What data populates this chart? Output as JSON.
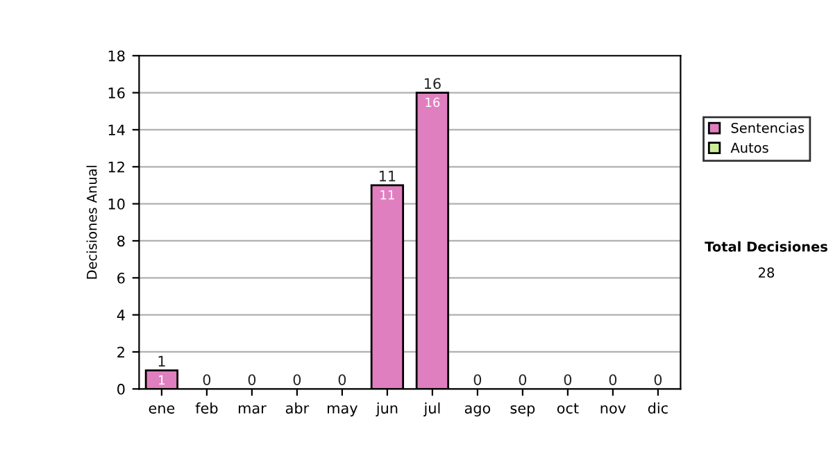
{
  "chart_data": {
    "type": "bar",
    "stacked": true,
    "ylabel": "Decisiones Anual",
    "categories": [
      "ene",
      "feb",
      "mar",
      "abr",
      "may",
      "jun",
      "jul",
      "ago",
      "sep",
      "oct",
      "nov",
      "dic"
    ],
    "series": [
      {
        "name": "Sentencias",
        "color": "#e07fbf",
        "values": [
          1,
          0,
          0,
          0,
          0,
          11,
          16,
          0,
          0,
          0,
          0,
          0
        ],
        "value_labels": [
          "1",
          null,
          null,
          null,
          null,
          "11",
          "16",
          null,
          null,
          null,
          null,
          null
        ]
      },
      {
        "name": "Autos",
        "color": "#ccee99",
        "values": [
          0,
          0,
          0,
          0,
          0,
          0,
          0,
          0,
          0,
          0,
          0,
          0
        ]
      }
    ],
    "totals": [
      "1",
      "0",
      "0",
      "0",
      "0",
      "11",
      "16",
      "0",
      "0",
      "0",
      "0",
      "0"
    ],
    "ylim": [
      0,
      18
    ],
    "yticks": [
      0,
      2,
      4,
      6,
      8,
      10,
      12,
      14,
      16,
      18
    ],
    "grid": "y",
    "legend": "right",
    "annotations": [
      "Total Decisiones",
      "28"
    ]
  }
}
